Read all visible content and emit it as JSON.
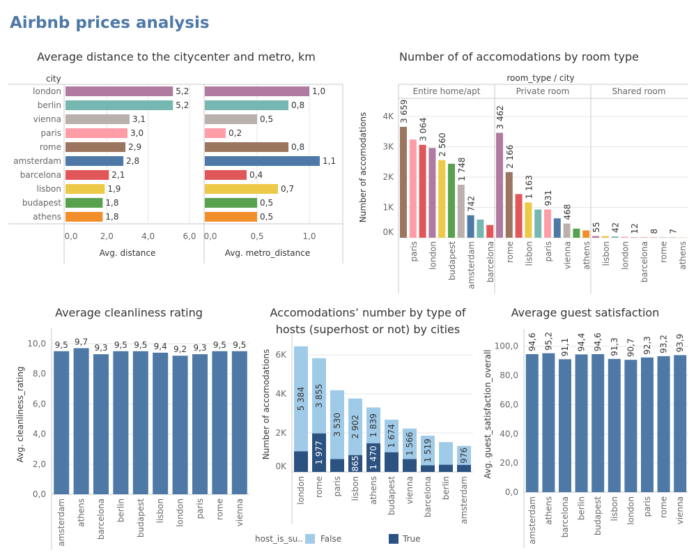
{
  "dashboard_title": "Airbnb prices analysis",
  "colors": {
    "title": "#4e79a7",
    "bar": "#4e79a7",
    "false": "#a0cbe8",
    "true": "#2c5282",
    "london": "#b07aa1",
    "berlin": "#76b7b2",
    "vienna": "#bab0ac",
    "paris": "#ff9da7",
    "rome": "#9c755f",
    "amsterdam": "#4e79a7",
    "barcelona": "#e15759",
    "lisbon": "#edc948",
    "budapest": "#59a14f",
    "athens": "#f28e2b"
  },
  "panels": {
    "distance": {
      "title": "Average distance to the citycenter and metro, km"
    },
    "room": {
      "title": "Number of of accomodations by room type"
    },
    "clean": {
      "title": "Average cleanliness rating"
    },
    "hosts": {
      "title": "Accomodations’ number by type of hosts (superhost or not) by cities"
    },
    "satisfaction": {
      "title": "Average guest satisfaction"
    }
  },
  "legend": {
    "title": "host_is_su..",
    "false_label": "False",
    "true_label": "True"
  },
  "chart_data": [
    {
      "id": "distance",
      "type": "bar",
      "orientation": "horizontal",
      "row_header": "city",
      "categories": [
        "london",
        "berlin",
        "vienna",
        "paris",
        "rome",
        "amsterdam",
        "barcelona",
        "lisbon",
        "budapest",
        "athens"
      ],
      "series": [
        {
          "name": "Avg. distance",
          "values": [
            "5,2",
            "5,2",
            "3,1",
            "3,0",
            "2,9",
            "2,8",
            "2,1",
            "1,9",
            "1,8",
            "1,8"
          ],
          "xlim": [
            0,
            6
          ],
          "ticks": [
            "0,0",
            "2,0",
            "4,0",
            "6,0"
          ],
          "tick_values": [
            0,
            2,
            4,
            6
          ]
        },
        {
          "name": "Avg. metro_distance",
          "values": [
            "1,0",
            "0,8",
            "0,5",
            "0,2",
            "0,8",
            "1,1",
            "0,4",
            "0,7",
            "0,5",
            "0,5"
          ],
          "xlim": [
            0,
            1.2
          ],
          "ticks": [
            "0,0",
            "0,5",
            "1,0"
          ],
          "tick_values": [
            0,
            0.5,
            1.0
          ]
        }
      ],
      "xlabel": "",
      "ylabel": ""
    },
    {
      "id": "room",
      "type": "bar",
      "header": "room_type / city",
      "ylabel": "Number of accomodations",
      "ylim": [
        0,
        4600
      ],
      "y_ticks": [
        "0K",
        "1K",
        "2K",
        "3K",
        "4K"
      ],
      "y_tick_values": [
        0,
        1000,
        2000,
        3000,
        4000
      ],
      "groups": [
        {
          "name": "Entire home/apt",
          "bars": [
            {
              "city": "rome",
              "value": 3659,
              "label": "3 659"
            },
            {
              "city": "paris",
              "value": 3240,
              "label": ""
            },
            {
              "city": "barcelona",
              "value": 3064,
              "label": "3 064"
            },
            {
              "city": "london",
              "value": 2960,
              "label": ""
            },
            {
              "city": "lisbon",
              "value": 2560,
              "label": "2 560"
            },
            {
              "city": "budapest",
              "value": 2440,
              "label": ""
            },
            {
              "city": "vienna",
              "value": 1748,
              "label": "1 748"
            },
            {
              "city": "amsterdam",
              "value": 742,
              "label": "742"
            },
            {
              "city": "berlin",
              "value": 600,
              "label": ""
            },
            {
              "city": "barcelona",
              "value": 420,
              "label": ""
            }
          ],
          "tick_labels": [
            "",
            "paris",
            "",
            "london",
            "",
            "budapest",
            "",
            "amsterdam",
            "",
            "barcelona"
          ]
        },
        {
          "name": "Private room",
          "bars": [
            {
              "city": "london",
              "value": 3462,
              "label": "3 462"
            },
            {
              "city": "rome",
              "value": 2166,
              "label": "2 166"
            },
            {
              "city": "barcelona",
              "value": 1440,
              "label": ""
            },
            {
              "city": "lisbon",
              "value": 1163,
              "label": "1 163"
            },
            {
              "city": "berlin",
              "value": 930,
              "label": ""
            },
            {
              "city": "paris",
              "value": 931,
              "label": "931"
            },
            {
              "city": "amsterdam",
              "value": 640,
              "label": ""
            },
            {
              "city": "vienna",
              "value": 468,
              "label": "468"
            },
            {
              "city": "budapest",
              "value": 300,
              "label": ""
            },
            {
              "city": "athens",
              "value": 240,
              "label": ""
            }
          ],
          "tick_labels": [
            "",
            "rome",
            "",
            "lisbon",
            "",
            "paris",
            "",
            "vienna",
            "",
            "athens"
          ]
        },
        {
          "name": "Shared room",
          "bars": [
            {
              "city": "london",
              "value": 55,
              "label": "55"
            },
            {
              "city": "lisbon",
              "value": 55,
              "label": ""
            },
            {
              "city": "berlin",
              "value": 42,
              "label": "42"
            },
            {
              "city": "paris",
              "value": 30,
              "label": ""
            },
            {
              "city": "london",
              "value": 12,
              "label": "12"
            },
            {
              "city": "barcelona",
              "value": 10,
              "label": ""
            },
            {
              "city": "barcelona",
              "value": 8,
              "label": "8"
            },
            {
              "city": "rome",
              "value": 7,
              "label": ""
            },
            {
              "city": "rome",
              "value": 7,
              "label": "7"
            },
            {
              "city": "athens",
              "value": 5,
              "label": ""
            }
          ],
          "tick_labels": [
            "",
            "lisbon",
            "",
            "london",
            "",
            "barcelona",
            "",
            "rome",
            "",
            "athens"
          ]
        }
      ]
    },
    {
      "id": "clean",
      "type": "bar",
      "ylabel": "Avg. cleanliness_rating",
      "ylim": [
        0,
        10.6
      ],
      "y_ticks": [
        "0,0",
        "2,0",
        "4,0",
        "6,0",
        "8,0",
        "10,0"
      ],
      "y_tick_values": [
        0,
        2,
        4,
        6,
        8,
        10
      ],
      "categories": [
        "amsterdam",
        "athens",
        "barcelona",
        "berlin",
        "budapest",
        "lisbon",
        "london",
        "paris",
        "rome",
        "vienna"
      ],
      "values": [
        9.5,
        9.7,
        9.3,
        9.5,
        9.5,
        9.4,
        9.2,
        9.3,
        9.5,
        9.5
      ],
      "labels": [
        "9,5",
        "9,7",
        "9,3",
        "9,5",
        "9,5",
        "9,4",
        "9,2",
        "9,3",
        "9,5",
        "9,5"
      ]
    },
    {
      "id": "hosts",
      "type": "bar",
      "stacked": true,
      "ylabel": "Number of accomodations",
      "ylim": [
        0,
        6900
      ],
      "y_ticks": [
        "0K",
        "2K",
        "4K",
        "6K"
      ],
      "y_tick_values": [
        0,
        2000,
        4000,
        6000
      ],
      "categories": [
        "london",
        "rome",
        "paris",
        "lisbon",
        "athens",
        "budapest",
        "vienna",
        "barcelona",
        "berlin",
        "amsterdam"
      ],
      "series": [
        {
          "name": "True",
          "values": [
            1060,
            1977,
            660,
            865,
            1470,
            1010,
            660,
            340,
            370,
            360
          ],
          "labels": [
            "",
            "1 977",
            "",
            "865",
            "1 470",
            "",
            "",
            "",
            "",
            ""
          ]
        },
        {
          "name": "False",
          "values": [
            5384,
            3855,
            3530,
            2902,
            1839,
            1674,
            1566,
            1519,
            1160,
            976
          ],
          "labels": [
            "5 384",
            "3 855",
            "3 530",
            "2 902",
            "1 839",
            "1 674",
            "1 566",
            "1 519",
            "",
            "976"
          ]
        }
      ]
    },
    {
      "id": "satisfaction",
      "type": "bar",
      "ylabel": "Avg. guest_satisfaction_overall",
      "ylim": [
        0,
        107
      ],
      "y_ticks": [
        "0,0",
        "20,0",
        "40,0",
        "60,0",
        "80,0",
        "100,0"
      ],
      "y_tick_values": [
        0,
        20,
        40,
        60,
        80,
        100
      ],
      "categories": [
        "amsterdam",
        "athens",
        "barcelona",
        "berlin",
        "budapest",
        "lisbon",
        "london",
        "paris",
        "rome",
        "vienna"
      ],
      "values": [
        94.6,
        95.2,
        91.1,
        94.4,
        94.6,
        91.3,
        90.7,
        92.3,
        93.2,
        93.9
      ],
      "labels": [
        "94,6",
        "95,2",
        "91,1",
        "94,4",
        "94,6",
        "91,3",
        "90,7",
        "92,3",
        "93,2",
        "93,9"
      ]
    }
  ]
}
